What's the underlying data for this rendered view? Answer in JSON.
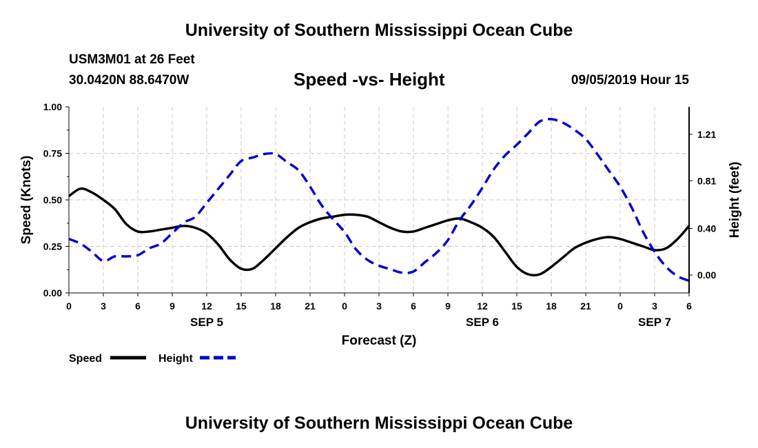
{
  "header": {
    "title_top": "University of Southern Mississippi Ocean Cube",
    "station": "USM3M01 at 26 Feet",
    "coords": "30.0420N 88.6470W",
    "datetime": "09/05/2019 Hour 15",
    "title_bottom": "University of Southern Mississippi Ocean Cube"
  },
  "chart_data": {
    "type": "line",
    "title": "Speed -vs- Height",
    "xlabel": "Forecast (Z)",
    "ylabel_left": "Speed (Knots)",
    "ylabel_right": "Height (feet)",
    "x_ticks": [
      "0",
      "3",
      "6",
      "9",
      "12",
      "15",
      "18",
      "21",
      "0",
      "3",
      "6",
      "9",
      "12",
      "15",
      "18",
      "21",
      "0",
      "3",
      "6"
    ],
    "x_day_labels": [
      {
        "label": "SEP 5",
        "hour": 12
      },
      {
        "label": "SEP 6",
        "hour": 36
      },
      {
        "label": "SEP 7",
        "hour": 51
      }
    ],
    "xlim": [
      0,
      54
    ],
    "y_left_ticks": [
      "0.00",
      "0.25",
      "0.50",
      "0.75",
      "1.00"
    ],
    "y_left_lim": [
      0,
      1
    ],
    "y_right_ticks": [
      "0.00",
      "0.40",
      "0.81",
      "1.21"
    ],
    "y_right_values": [
      0,
      0.4,
      0.81,
      1.21
    ],
    "y_right_lim": [
      -0.154,
      1.446
    ],
    "grid": true,
    "legend": [
      {
        "name": "Speed",
        "color": "#000000",
        "style": "solid"
      },
      {
        "name": "Height",
        "color": "#0000cc",
        "style": "dashed"
      }
    ],
    "series": [
      {
        "name": "Speed",
        "axis": "left",
        "color": "#000000",
        "x": [
          0,
          1,
          2,
          3,
          4,
          5,
          6,
          7,
          8,
          9,
          10,
          11,
          12,
          13,
          14,
          15,
          16,
          17,
          18,
          19,
          20,
          21,
          22,
          23,
          24,
          25,
          26,
          27,
          28,
          29,
          30,
          31,
          32,
          33,
          34,
          35,
          36,
          37,
          38,
          39,
          40,
          41,
          42,
          43,
          44,
          45,
          46,
          47,
          48,
          49,
          50,
          51,
          52,
          53,
          54
        ],
        "values": [
          0.52,
          0.56,
          0.54,
          0.5,
          0.45,
          0.37,
          0.33,
          0.33,
          0.34,
          0.35,
          0.36,
          0.35,
          0.32,
          0.26,
          0.18,
          0.13,
          0.13,
          0.18,
          0.24,
          0.3,
          0.35,
          0.38,
          0.4,
          0.41,
          0.42,
          0.42,
          0.41,
          0.38,
          0.35,
          0.33,
          0.33,
          0.35,
          0.37,
          0.39,
          0.4,
          0.38,
          0.35,
          0.3,
          0.22,
          0.14,
          0.1,
          0.1,
          0.14,
          0.19,
          0.24,
          0.27,
          0.29,
          0.3,
          0.29,
          0.27,
          0.25,
          0.23,
          0.24,
          0.29,
          0.36
        ]
      },
      {
        "name": "Height",
        "axis": "right",
        "color": "#0000cc",
        "x": [
          0,
          1,
          2,
          3,
          4,
          5,
          6,
          7,
          8,
          9,
          10,
          11,
          12,
          13,
          14,
          15,
          16,
          17,
          18,
          19,
          20,
          21,
          22,
          23,
          24,
          25,
          26,
          27,
          28,
          29,
          30,
          31,
          32,
          33,
          34,
          35,
          36,
          37,
          38,
          39,
          40,
          41,
          42,
          43,
          44,
          45,
          46,
          47,
          48,
          49,
          50,
          51,
          52,
          53,
          54
        ],
        "values": [
          0.31,
          0.27,
          0.2,
          0.12,
          0.16,
          0.16,
          0.17,
          0.23,
          0.27,
          0.36,
          0.45,
          0.5,
          0.62,
          0.74,
          0.86,
          0.98,
          1.01,
          1.04,
          1.04,
          0.97,
          0.9,
          0.76,
          0.6,
          0.48,
          0.37,
          0.22,
          0.13,
          0.08,
          0.05,
          0.02,
          0.03,
          0.11,
          0.19,
          0.3,
          0.47,
          0.6,
          0.75,
          0.91,
          1.03,
          1.12,
          1.22,
          1.32,
          1.34,
          1.31,
          1.25,
          1.17,
          1.04,
          0.9,
          0.76,
          0.58,
          0.37,
          0.2,
          0.07,
          -0.01,
          -0.05
        ]
      }
    ]
  }
}
